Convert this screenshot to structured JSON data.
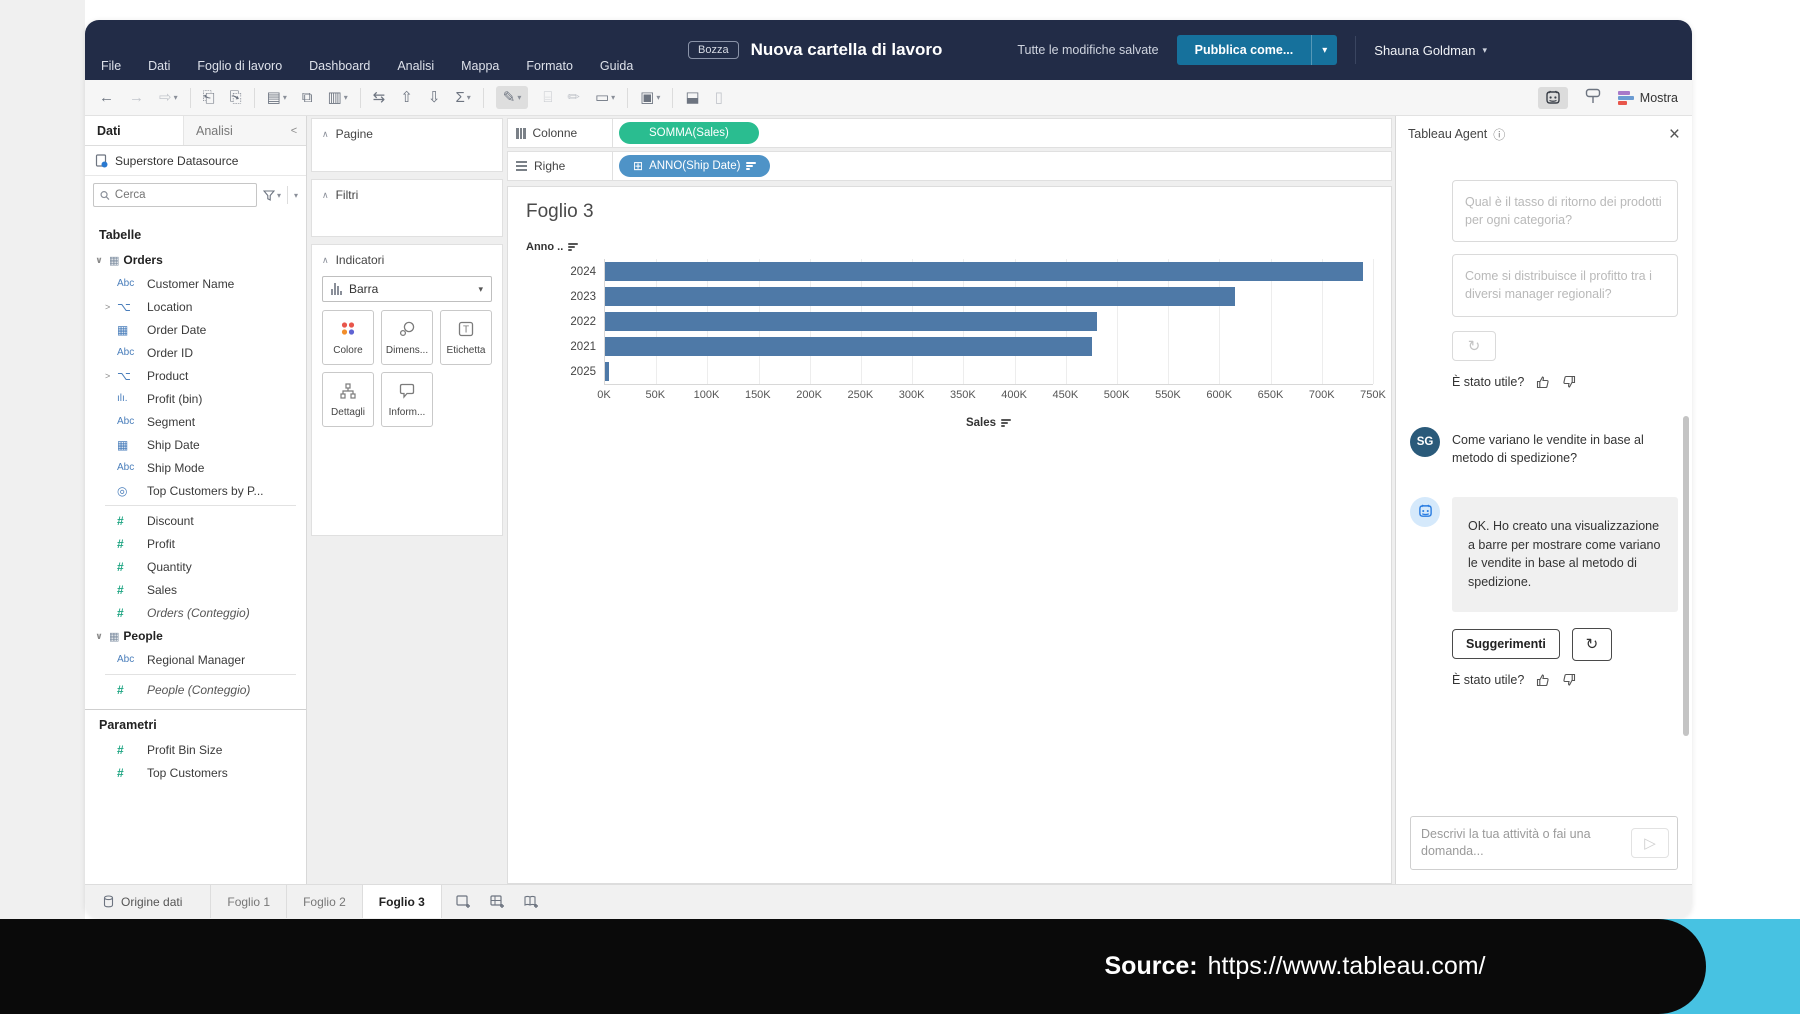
{
  "app": {
    "menu": [
      "File",
      "Dati",
      "Foglio di lavoro",
      "Dashboard",
      "Analisi",
      "Mappa",
      "Formato",
      "Guida"
    ],
    "badge": "Bozza",
    "title": "Nuova cartella di lavoro",
    "saved_status": "Tutte le modifiche salvate",
    "publish_label": "Pubblica come...",
    "user_name": "Shauna Goldman",
    "show_me_label": "Mostra"
  },
  "colors": {
    "navbar": "#222c47",
    "publish_blue": "#16719c",
    "bar_blue": "#4e79a7",
    "pill_green": "#2abd90",
    "pill_blue": "#4e93c7",
    "accent_cyan": "#47c2e2",
    "dimension_blue": "#4a7ebb",
    "measure_green": "#1fa583"
  },
  "data_panel": {
    "tabs": [
      {
        "label": "Dati",
        "active": true
      },
      {
        "label": "Analisi",
        "active": false
      }
    ],
    "collapse_icon": "<",
    "datasource": "Superstore Datasource",
    "search_placeholder": "Cerca",
    "tables_header": "Tabelle",
    "tables": [
      {
        "name": "Orders",
        "fields": [
          {
            "name": "Customer Name",
            "type": "abc"
          },
          {
            "name": "Location",
            "type": "hier",
            "expand": true
          },
          {
            "name": "Order Date",
            "type": "date"
          },
          {
            "name": "Order ID",
            "type": "abc"
          },
          {
            "name": "Product",
            "type": "hier",
            "expand": true
          },
          {
            "name": "Profit (bin)",
            "type": "bin"
          },
          {
            "name": "Segment",
            "type": "abc"
          },
          {
            "name": "Ship Date",
            "type": "date"
          },
          {
            "name": "Ship Mode",
            "type": "abc"
          },
          {
            "name": "Top Customers by P...",
            "type": "set"
          },
          {
            "name": "Discount",
            "type": "num",
            "sep_before": true
          },
          {
            "name": "Profit",
            "type": "num"
          },
          {
            "name": "Quantity",
            "type": "num"
          },
          {
            "name": "Sales",
            "type": "num"
          },
          {
            "name": "Orders (Conteggio)",
            "type": "num",
            "italic": true
          }
        ]
      },
      {
        "name": "People",
        "fields": [
          {
            "name": "Regional Manager",
            "type": "abc"
          },
          {
            "name": "People (Conteggio)",
            "type": "num",
            "italic": true,
            "sep_before": true
          }
        ]
      }
    ],
    "parameters_header": "Parametri",
    "parameters": [
      "Profit Bin Size",
      "Top Customers"
    ]
  },
  "cards": {
    "pages_label": "Pagine",
    "filters_label": "Filtri",
    "marks_label": "Indicatori",
    "mark_type": "Barra",
    "mark_buttons": [
      {
        "label": "Colore",
        "icon": "color"
      },
      {
        "label": "Dimens...",
        "icon": "size"
      },
      {
        "label": "Etichetta",
        "icon": "label"
      },
      {
        "label": "Dettagli",
        "icon": "detail"
      },
      {
        "label": "Inform...",
        "icon": "tooltip"
      }
    ]
  },
  "shelves": {
    "columns_label": "Colonne",
    "columns_pill": "SOMMA(Sales)",
    "rows_label": "Righe",
    "rows_pill": "ANNO(Ship Date)"
  },
  "sheet": {
    "title": "Foglio 3",
    "row_field_label": "Anno ..",
    "axis_label": "Sales"
  },
  "chart_data": {
    "type": "bar",
    "orientation": "horizontal",
    "title": "Foglio 3",
    "categories": [
      "2024",
      "2023",
      "2022",
      "2021",
      "2025"
    ],
    "values": [
      740000,
      615000,
      480000,
      476000,
      4000
    ],
    "series_name": "SOMMA(Sales)",
    "xlabel": "Sales",
    "ylabel": "Anno di Ship Date",
    "xlim": [
      0,
      750000
    ],
    "x_tick_labels": [
      "0K",
      "50K",
      "100K",
      "150K",
      "200K",
      "250K",
      "300K",
      "350K",
      "400K",
      "450K",
      "500K",
      "550K",
      "600K",
      "650K",
      "700K",
      "750K"
    ],
    "bar_color": "#4e79a7",
    "grid": true,
    "sorted": "descending"
  },
  "agent": {
    "title": "Tableau Agent",
    "suggestions": [
      "Qual è il tasso di ritorno dei prodotti per ogni categoria?",
      "Come si distribuisce il profitto tra i diversi manager regionali?"
    ],
    "helpful_label": "È stato utile?",
    "user_initials": "SG",
    "user_message": "Come variano le vendite in base al metodo di spedizione?",
    "agent_message": "OK. Ho creato una visualizzazione a barre per mostrare come variano le vendite in base al metodo di spedizione.",
    "suggestions_button": "Suggerimenti",
    "input_placeholder": "Descrivi la tua attività o fai una domanda..."
  },
  "bottom_bar": {
    "datasource_tab": "Origine dati",
    "sheet_tabs": [
      {
        "label": "Foglio 1",
        "active": false
      },
      {
        "label": "Foglio 2",
        "active": false
      },
      {
        "label": "Foglio 3",
        "active": true
      }
    ]
  },
  "footer": {
    "source_label": "Source:",
    "source_url": "https://www.tableau.com/"
  }
}
